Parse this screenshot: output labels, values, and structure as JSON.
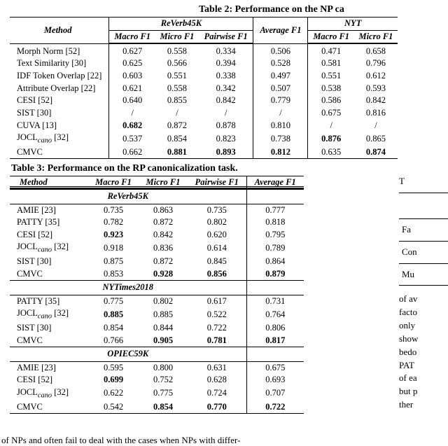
{
  "table2": {
    "caption": "Table 2: Performance on the NP ca",
    "header": {
      "method": "Method",
      "group_reverb": "ReVerb45K",
      "group_nyt": "NYT",
      "cols": [
        "Macro F1",
        "Micro F1",
        "Pairwise F1"
      ],
      "avg": "Average F1",
      "cols_nyt": [
        "Macro F1",
        "Micro F1"
      ]
    },
    "rows": [
      {
        "method": "Morph Norm [52]",
        "r": [
          "0.627",
          "0.558",
          "0.334"
        ],
        "avg": "0.506",
        "n": [
          "0.471",
          "0.658"
        ],
        "bold": {}
      },
      {
        "method": "Text Similarity [30]",
        "r": [
          "0.625",
          "0.566",
          "0.394"
        ],
        "avg": "0.528",
        "n": [
          "0.581",
          "0.796"
        ],
        "bold": {}
      },
      {
        "method": "IDF Token Overlap [22]",
        "r": [
          "0.603",
          "0.551",
          "0.338"
        ],
        "avg": "0.497",
        "n": [
          "0.551",
          "0.612"
        ],
        "bold": {}
      },
      {
        "method": "Attribute Overlap [22]",
        "r": [
          "0.621",
          "0.558",
          "0.342"
        ],
        "avg": "0.507",
        "n": [
          "0.538",
          "0.593"
        ],
        "bold": {}
      },
      {
        "method": "CESI [52]",
        "r": [
          "0.640",
          "0.855",
          "0.842"
        ],
        "avg": "0.779",
        "n": [
          "0.586",
          "0.842"
        ],
        "bold": {}
      },
      {
        "method": "SIST [30]",
        "r": [
          "/",
          "/",
          "/"
        ],
        "avg": "/",
        "n": [
          "0.675",
          "0.816"
        ],
        "bold": {}
      },
      {
        "method": "CUVA [13]",
        "r": [
          "0.682",
          "0.872",
          "0.878"
        ],
        "avg": "0.810",
        "n": [
          "/",
          "/"
        ],
        "bold": {
          "r0": true
        }
      },
      {
        "method_html": "JOCL<sub><i>cano</i></sub> [32]",
        "r": [
          "0.537",
          "0.854",
          "0.823"
        ],
        "avg": "0.738",
        "n": [
          "0.876",
          "0.865"
        ],
        "bold": {
          "n0": true
        }
      },
      {
        "method": "CMVC",
        "r": [
          "0.662",
          "0.881",
          "0.893"
        ],
        "avg": "0.812",
        "n": [
          "0.635",
          "0.874"
        ],
        "bold": {
          "r1": true,
          "r2": true,
          "avg": true,
          "n1": true
        }
      }
    ]
  },
  "table3": {
    "caption": "Table 3: Performance on the RP canonicalization task.",
    "header": {
      "method": "Method",
      "cols": [
        "Macro F1",
        "Micro F1",
        "Pairwise F1"
      ],
      "avg": "Average F1"
    },
    "groups": [
      {
        "dataset": "ReVerb45K",
        "rows": [
          {
            "method": "AMIE [23]",
            "v": [
              "0.735",
              "0.863",
              "0.735"
            ],
            "avg": "0.777",
            "bold": {}
          },
          {
            "method": "PATTY [35]",
            "v": [
              "0.782",
              "0.872",
              "0.802"
            ],
            "avg": "0.818",
            "bold": {}
          },
          {
            "method": "CESI [52]",
            "v": [
              "0.923",
              "0.842",
              "0.620"
            ],
            "avg": "0.795",
            "bold": {
              "v0": true
            }
          },
          {
            "method_html": "JOCL<sub><i>cano</i></sub> [32]",
            "v": [
              "0.918",
              "0.836",
              "0.614"
            ],
            "avg": "0.789",
            "bold": {}
          },
          {
            "method": "SIST [30]",
            "v": [
              "0.875",
              "0.872",
              "0.845"
            ],
            "avg": "0.864",
            "bold": {}
          },
          {
            "method": "CMVC",
            "v": [
              "0.853",
              "0.928",
              "0.856"
            ],
            "avg": "0.879",
            "bold": {
              "v1": true,
              "v2": true,
              "avg": true
            }
          }
        ]
      },
      {
        "dataset": "NYTimes2018",
        "rows": [
          {
            "method": "PATTY [35]",
            "v": [
              "0.775",
              "0.802",
              "0.617"
            ],
            "avg": "0.731",
            "bold": {}
          },
          {
            "method_html": "JOCL<sub><i>cano</i></sub> [32]",
            "v": [
              "0.885",
              "0.885",
              "0.522"
            ],
            "avg": "0.764",
            "bold": {
              "v0": true
            }
          },
          {
            "method": "SIST [30]",
            "v": [
              "0.854",
              "0.844",
              "0.722"
            ],
            "avg": "0.806",
            "bold": {}
          },
          {
            "method": "CMVC",
            "v": [
              "0.766",
              "0.905",
              "0.781"
            ],
            "avg": "0.817",
            "bold": {
              "v1": true,
              "v2": true,
              "avg": true
            }
          }
        ]
      },
      {
        "dataset": "OPIEC59K",
        "rows": [
          {
            "method": "AMIE [23]",
            "v": [
              "0.595",
              "0.800",
              "0.631"
            ],
            "avg": "0.675",
            "bold": {}
          },
          {
            "method": "CESI [52]",
            "v": [
              "0.699",
              "0.752",
              "0.628"
            ],
            "avg": "0.693",
            "bold": {
              "v0": true
            }
          },
          {
            "method_html": "JOCL<sub><i>cano</i></sub> [32]",
            "v": [
              "0.622",
              "0.775",
              "0.724"
            ],
            "avg": "0.707",
            "bold": {}
          },
          {
            "method": "CMVC",
            "v": [
              "0.542",
              "0.854",
              "0.770"
            ],
            "avg": "0.722",
            "bold": {
              "v1": true,
              "v2": true,
              "avg": true
            }
          }
        ]
      }
    ]
  },
  "rightcol": {
    "lines_top": [
      "T"
    ],
    "lines_mid": [
      "Fa",
      "Con",
      "Mu"
    ],
    "lines_body": [
      "of av",
      "facto",
      "only",
      "show",
      "bedo",
      "PAT",
      "of ea",
      "but p",
      "ther"
    ]
  },
  "bottom_text": "of NPs and often fail to deal with the cases when NPs with differ-"
}
